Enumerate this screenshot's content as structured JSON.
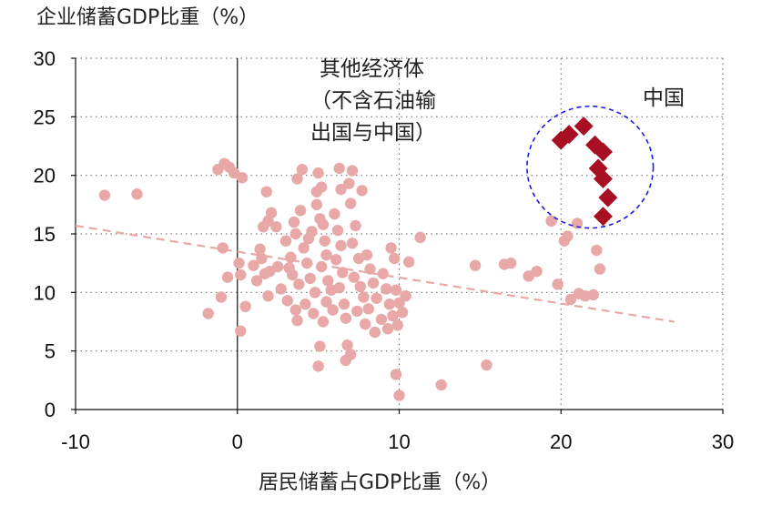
{
  "chart_data": {
    "type": "scatter",
    "title": "",
    "ylabel": "企业储蓄GDP比重（%）",
    "xlabel": "居民储蓄占GDP比重（%）",
    "xlim": [
      -10,
      30
    ],
    "ylim": [
      0,
      30
    ],
    "xticks": [
      "-10",
      "0",
      "10",
      "20",
      "30"
    ],
    "yticks": [
      "0",
      "5",
      "10",
      "15",
      "20",
      "25",
      "30"
    ],
    "grid": "dotted",
    "annotations": {
      "other_line1": "其他经济体",
      "other_line2": "（不含石油输",
      "other_line3": "出国与中国）",
      "china": "中国"
    },
    "trendline": {
      "x": [
        -10,
        27
      ],
      "y": [
        15.7,
        7.5
      ]
    },
    "china_circle": {
      "cx": 21.8,
      "cy": 20.7,
      "rx": 3.9,
      "ry": 5.2
    },
    "series": [
      {
        "name": "其他经济体",
        "marker": "circle",
        "color": "#e8a8a8",
        "points": [
          [
            -8.2,
            18.3
          ],
          [
            -6.2,
            18.4
          ],
          [
            -1.8,
            8.2
          ],
          [
            -1.2,
            20.5
          ],
          [
            -0.8,
            21.0
          ],
          [
            -0.5,
            20.7
          ],
          [
            -0.2,
            20.2
          ],
          [
            0.3,
            19.8
          ],
          [
            -0.9,
            13.8
          ],
          [
            -0.6,
            11.3
          ],
          [
            -1.0,
            9.6
          ],
          [
            0.2,
            11.5
          ],
          [
            0.1,
            12.5
          ],
          [
            0.5,
            8.8
          ],
          [
            0.2,
            6.7
          ],
          [
            1.0,
            12.3
          ],
          [
            1.2,
            11.0
          ],
          [
            1.5,
            12.9
          ],
          [
            1.7,
            11.6
          ],
          [
            1.4,
            13.7
          ],
          [
            1.6,
            15.6
          ],
          [
            1.9,
            16.1
          ],
          [
            1.8,
            18.6
          ],
          [
            2.1,
            16.8
          ],
          [
            2.4,
            15.6
          ],
          [
            2.5,
            12.2
          ],
          [
            2.0,
            11.8
          ],
          [
            2.7,
            10.3
          ],
          [
            1.9,
            9.7
          ],
          [
            3.0,
            14.4
          ],
          [
            3.2,
            12.1
          ],
          [
            3.3,
            13.0
          ],
          [
            3.1,
            9.3
          ],
          [
            3.5,
            16.0
          ],
          [
            3.6,
            15.0
          ],
          [
            3.4,
            11.5
          ],
          [
            3.8,
            10.7
          ],
          [
            3.9,
            17.0
          ],
          [
            3.7,
            19.7
          ],
          [
            4.0,
            20.5
          ],
          [
            4.1,
            13.8
          ],
          [
            4.3,
            12.5
          ],
          [
            4.2,
            9.0
          ],
          [
            3.6,
            8.5
          ],
          [
            3.7,
            7.6
          ],
          [
            4.4,
            14.6
          ],
          [
            4.6,
            15.2
          ],
          [
            4.5,
            11.2
          ],
          [
            4.8,
            10.0
          ],
          [
            4.7,
            8.2
          ],
          [
            4.9,
            17.5
          ],
          [
            4.9,
            18.6
          ],
          [
            5.0,
            20.2
          ],
          [
            5.2,
            19.0
          ],
          [
            5.1,
            16.3
          ],
          [
            5.3,
            15.8
          ],
          [
            5.4,
            14.4
          ],
          [
            5.5,
            13.2
          ],
          [
            5.2,
            12.2
          ],
          [
            5.6,
            11.0
          ],
          [
            5.8,
            10.2
          ],
          [
            5.5,
            9.2
          ],
          [
            5.9,
            8.5
          ],
          [
            5.3,
            7.5
          ],
          [
            5.1,
            5.4
          ],
          [
            5.0,
            3.7
          ],
          [
            6.0,
            16.7
          ],
          [
            6.2,
            15.3
          ],
          [
            6.4,
            14.0
          ],
          [
            6.1,
            12.8
          ],
          [
            6.5,
            11.7
          ],
          [
            6.3,
            10.4
          ],
          [
            6.6,
            9.0
          ],
          [
            6.7,
            7.8
          ],
          [
            6.4,
            18.8
          ],
          [
            6.3,
            20.6
          ],
          [
            6.9,
            19.3
          ],
          [
            7.0,
            17.6
          ],
          [
            7.3,
            15.7
          ],
          [
            7.1,
            14.2
          ],
          [
            7.5,
            12.9
          ],
          [
            7.2,
            11.3
          ],
          [
            7.6,
            10.5
          ],
          [
            7.8,
            9.6
          ],
          [
            7.4,
            8.4
          ],
          [
            7.9,
            7.3
          ],
          [
            7.1,
            20.4
          ],
          [
            7.7,
            18.7
          ],
          [
            6.8,
            5.5
          ],
          [
            6.7,
            4.2
          ],
          [
            7.0,
            4.7
          ],
          [
            8.0,
            13.2
          ],
          [
            8.2,
            12.0
          ],
          [
            8.4,
            10.8
          ],
          [
            8.6,
            9.5
          ],
          [
            8.1,
            8.6
          ],
          [
            8.9,
            7.7
          ],
          [
            8.5,
            6.6
          ],
          [
            9.0,
            11.6
          ],
          [
            9.2,
            10.3
          ],
          [
            9.4,
            9.0
          ],
          [
            9.6,
            8.0
          ],
          [
            9.3,
            6.9
          ],
          [
            9.7,
            12.9
          ],
          [
            9.5,
            13.8
          ],
          [
            9.8,
            10.2
          ],
          [
            10.0,
            9.1
          ],
          [
            10.2,
            8.3
          ],
          [
            9.9,
            7.2
          ],
          [
            10.4,
            9.7
          ],
          [
            10.6,
            12.6
          ],
          [
            9.8,
            3.0
          ],
          [
            10.0,
            1.2
          ],
          [
            11.3,
            14.7
          ],
          [
            12.6,
            2.1
          ],
          [
            14.7,
            12.3
          ],
          [
            15.4,
            3.8
          ],
          [
            16.5,
            12.4
          ],
          [
            16.9,
            12.5
          ],
          [
            18.0,
            11.4
          ],
          [
            18.5,
            11.8
          ],
          [
            19.4,
            16.1
          ],
          [
            19.8,
            10.7
          ],
          [
            20.2,
            14.4
          ],
          [
            20.4,
            14.8
          ],
          [
            20.6,
            9.4
          ],
          [
            21.1,
            9.9
          ],
          [
            21.5,
            9.7
          ],
          [
            21.0,
            15.9
          ],
          [
            22.0,
            9.8
          ],
          [
            22.2,
            13.6
          ],
          [
            22.4,
            12.0
          ]
        ]
      },
      {
        "name": "中国",
        "marker": "diamond",
        "color": "#a80f23",
        "points": [
          [
            20.0,
            23.0
          ],
          [
            20.5,
            23.5
          ],
          [
            21.4,
            24.2
          ],
          [
            22.1,
            22.6
          ],
          [
            22.6,
            22.0
          ],
          [
            22.3,
            20.6
          ],
          [
            22.6,
            19.7
          ],
          [
            22.9,
            18.1
          ],
          [
            22.6,
            16.5
          ]
        ]
      }
    ]
  }
}
